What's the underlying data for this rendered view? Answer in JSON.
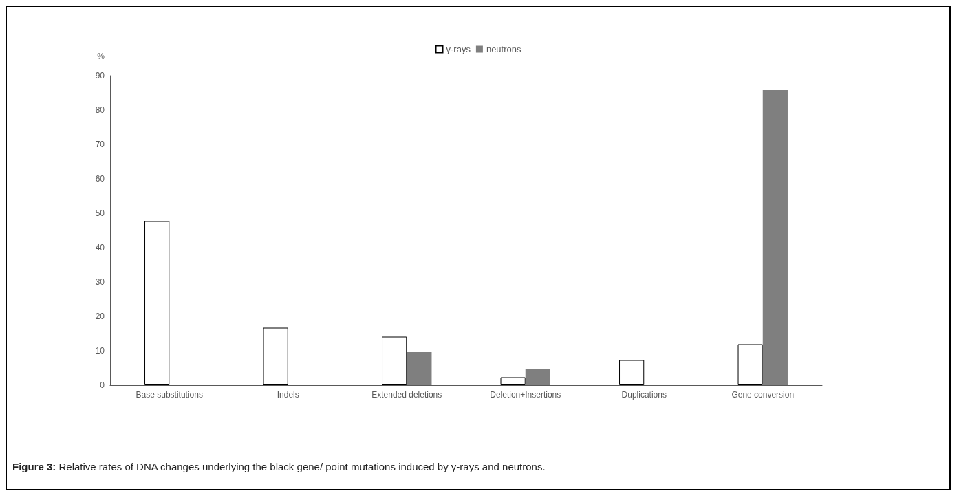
{
  "chart_data": {
    "type": "bar",
    "ylabel": "%",
    "categories": [
      "Base substitutions",
      "Indels",
      "Extended deletions",
      "Deletion+Insertions",
      "Duplications",
      "Gene conversion"
    ],
    "series": [
      {
        "name": "γ-rays",
        "color": "#ffffff",
        "values": [
          47.7,
          16.7,
          14.1,
          2.3,
          7.3,
          11.9
        ]
      },
      {
        "name": "neutrons",
        "color": "#7f7f7f",
        "values": [
          0,
          0,
          9.6,
          4.8,
          0,
          85.8
        ]
      }
    ],
    "ylim": [
      0,
      90
    ],
    "yticks": [
      0,
      10,
      20,
      30,
      40,
      50,
      60,
      70,
      80,
      90
    ],
    "grid": false,
    "legend": "top",
    "annotations": [
      "Figure 3: Relative rates of DNA changes underlying the black gene/ point mutations induced by γ-rays and neutrons."
    ]
  }
}
